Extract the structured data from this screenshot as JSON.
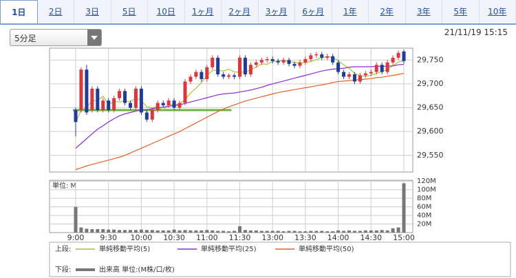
{
  "tabs": [
    "1日",
    "2日",
    "3日",
    "5日",
    "10日",
    "1ヶ月",
    "2ヶ月",
    "3ヶ月",
    "6ヶ月",
    "1年",
    "2年",
    "3年",
    "5年",
    "10年"
  ],
  "selected_tab": 0,
  "interval_select": "5分足",
  "timestamp": "21/11/19 15:15",
  "chart_data": {
    "type": "candlestick",
    "categories": [
      "9:00",
      null,
      null,
      null,
      null,
      null,
      "9:30",
      null,
      null,
      null,
      null,
      null,
      "10:00",
      null,
      null,
      null,
      null,
      null,
      "10:30",
      null,
      null,
      null,
      null,
      null,
      "11:00",
      null,
      null,
      null,
      null,
      null,
      "11:30",
      null,
      null,
      null,
      null,
      null,
      "13:00",
      null,
      null,
      null,
      null,
      null,
      "13:30",
      null,
      null,
      null,
      null,
      null,
      "14:00",
      null,
      null,
      null,
      null,
      null,
      "14:30",
      null,
      null,
      null,
      null,
      null,
      "15:00"
    ],
    "open": [
      29645,
      29645,
      29730,
      29645,
      29690,
      29645,
      29665,
      29645,
      29670,
      29685,
      29660,
      29650,
      29690,
      29640,
      29625,
      29645,
      29660,
      29655,
      29665,
      29650,
      29660,
      29705,
      29715,
      29725,
      29710,
      29735,
      29755,
      29720,
      29715,
      29718,
      29715,
      29755,
      29720,
      29740,
      29745,
      29750,
      29752,
      29748,
      29745,
      29750,
      29742,
      29738,
      29745,
      29752,
      29760,
      29762,
      29755,
      29758,
      29745,
      29725,
      29715,
      29720,
      29705,
      29718,
      29722,
      29725,
      29740,
      29725,
      29745,
      29755,
      29768
    ],
    "high": [
      29650,
      29735,
      29740,
      29695,
      29695,
      29670,
      29670,
      29675,
      29690,
      29690,
      29665,
      29695,
      29695,
      29645,
      29650,
      29665,
      29665,
      29670,
      29670,
      29665,
      29710,
      29720,
      29730,
      29730,
      29740,
      29760,
      29760,
      29725,
      29722,
      29722,
      29760,
      29760,
      29745,
      29750,
      29755,
      29757,
      29757,
      29753,
      29755,
      29755,
      29747,
      29750,
      29757,
      29765,
      29767,
      29767,
      29763,
      29763,
      29750,
      29730,
      29725,
      29725,
      29723,
      29727,
      29730,
      29745,
      29745,
      29750,
      29760,
      29770,
      29772
    ],
    "low": [
      29590,
      29640,
      29635,
      29640,
      29640,
      29640,
      29640,
      29640,
      29665,
      29655,
      29645,
      29645,
      29635,
      29620,
      29620,
      29640,
      29650,
      29650,
      29645,
      29645,
      29655,
      29700,
      29710,
      29705,
      29705,
      29730,
      29715,
      29710,
      29710,
      29710,
      29710,
      29715,
      29715,
      29735,
      29740,
      29745,
      29743,
      29740,
      29740,
      29737,
      29733,
      29733,
      29740,
      29747,
      29755,
      29750,
      29750,
      29740,
      29720,
      29710,
      29710,
      29700,
      29700,
      29713,
      29717,
      29720,
      29720,
      29720,
      29740,
      29750,
      29743
    ],
    "close": [
      29620,
      29730,
      29640,
      29690,
      29645,
      29665,
      29645,
      29670,
      29685,
      29660,
      29650,
      29690,
      29640,
      29625,
      29645,
      29660,
      29655,
      29665,
      29650,
      29660,
      29705,
      29715,
      29725,
      29710,
      29735,
      29755,
      29720,
      29715,
      29718,
      29715,
      29755,
      29720,
      29740,
      29745,
      29750,
      29752,
      29748,
      29745,
      29750,
      29742,
      29738,
      29745,
      29752,
      29760,
      29762,
      29755,
      29758,
      29745,
      29725,
      29715,
      29720,
      29705,
      29718,
      29722,
      29725,
      29740,
      29725,
      29745,
      29755,
      29765,
      29748
    ],
    "up_color": "#e0353a",
    "down_color": "#1e3c9c",
    "ylim": [
      29515,
      29775
    ],
    "yticks": [
      {
        "value": 29550,
        "label": "29,550"
      },
      {
        "value": 29600,
        "label": "29,600"
      },
      {
        "value": 29650,
        "label": "29,650"
      },
      {
        "value": 29700,
        "label": "29,700"
      },
      {
        "value": 29750,
        "label": "29,750"
      }
    ],
    "grid": true,
    "reference_line": {
      "value": 29645,
      "color": "#6db33f"
    },
    "moving_averages": [
      {
        "name": "単純移動平均(5)",
        "color": "#a8c43c",
        "values": [
          29620,
          29645,
          29650,
          29665,
          29665,
          29674,
          29657,
          29663,
          29662,
          29665,
          29662,
          29671,
          29665,
          29652,
          29650,
          29652,
          29645,
          29658,
          29655,
          29658,
          29667,
          29681,
          29691,
          29703,
          29718,
          29728,
          29729,
          29727,
          29731,
          29725,
          29725,
          29725,
          29730,
          29735,
          29742,
          29741,
          29747,
          29748,
          29749,
          29747,
          29745,
          29744,
          29745,
          29747,
          29751,
          29755,
          29757,
          29756,
          29749,
          29740,
          29733,
          29722,
          29717,
          29716,
          29718,
          29722,
          29726,
          29731,
          29738,
          29746,
          29748
        ]
      },
      {
        "name": "単純移動平均(25)",
        "color": "#8a2bd0",
        "values": [
          29565,
          29575,
          29585,
          29595,
          29605,
          29612,
          29620,
          29627,
          29633,
          29637,
          29640,
          29643,
          29645,
          29646,
          29648,
          29650,
          29651,
          29653,
          29655,
          29656,
          29659,
          29662,
          29665,
          29668,
          29671,
          29674,
          29677,
          29679,
          29680,
          29681,
          29683,
          29685,
          29687,
          29690,
          29693,
          29697,
          29700,
          29703,
          29706,
          29709,
          29712,
          29715,
          29718,
          29721,
          29724,
          29727,
          29729,
          29731,
          29732,
          29733,
          29735,
          29736,
          29736,
          29736,
          29736,
          29737,
          29737,
          29737,
          29738,
          29740,
          29741
        ]
      },
      {
        "name": "単純移動平均(50)",
        "color": "#e0602a",
        "values": [
          29520,
          29524,
          29528,
          29531,
          29534,
          29537,
          29540,
          29543,
          29546,
          29550,
          29555,
          29560,
          29565,
          29570,
          29575,
          29580,
          29585,
          29590,
          29595,
          29600,
          29606,
          29612,
          29618,
          29624,
          29630,
          29636,
          29642,
          29647,
          29652,
          29656,
          29660,
          29664,
          29667,
          29670,
          29673,
          29676,
          29679,
          29682,
          29684,
          29686,
          29688,
          29690,
          29692,
          29694,
          29696,
          29698,
          29700,
          29703,
          29705,
          29706,
          29707,
          29708,
          29709,
          29710,
          29711,
          29713,
          29714,
          29716,
          29718,
          29720,
          29722
        ]
      }
    ],
    "volume": {
      "label": "単位: M",
      "name": "出来高 単位:(M株/口/枚)",
      "color": "#777777",
      "ylim": [
        0,
        122
      ],
      "yticks": [
        {
          "value": 20,
          "label": "20M"
        },
        {
          "value": 40,
          "label": "40M"
        },
        {
          "value": 60,
          "label": "60M"
        },
        {
          "value": 80,
          "label": "80M"
        },
        {
          "value": 100,
          "label": "100M"
        },
        {
          "value": 120,
          "label": "120M"
        }
      ],
      "values": [
        60,
        12,
        9,
        8,
        8,
        8,
        7,
        7,
        6,
        6,
        6,
        6,
        7,
        6,
        6,
        5,
        5,
        5,
        7,
        5,
        6,
        5,
        5,
        5,
        6,
        5,
        4,
        4,
        3,
        4,
        15,
        6,
        5,
        5,
        4,
        4,
        4,
        4,
        3,
        4,
        4,
        3,
        3,
        4,
        4,
        4,
        3,
        3,
        5,
        4,
        5,
        4,
        4,
        5,
        5,
        5,
        6,
        5,
        10,
        12,
        115
      ]
    },
    "legend": {
      "upper_label": "上段:",
      "lower_label": "下段:"
    }
  }
}
